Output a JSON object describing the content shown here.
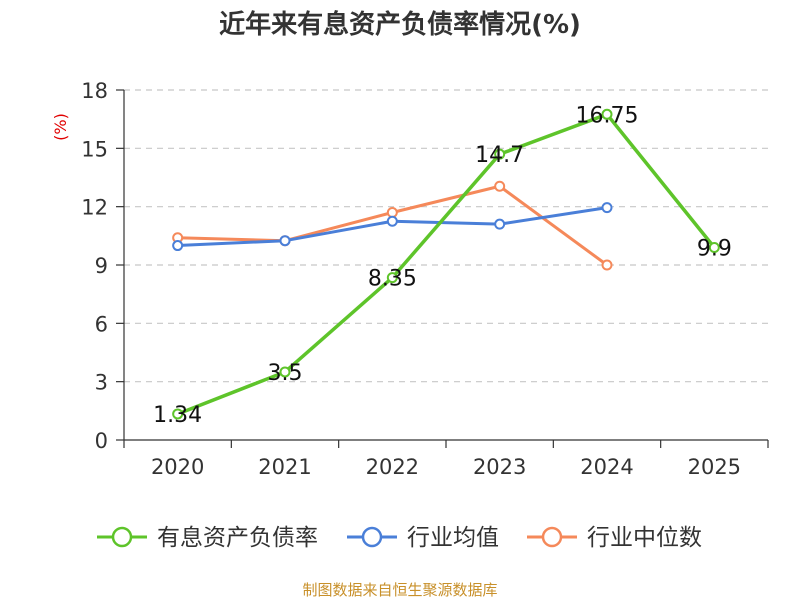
{
  "chart_data": {
    "type": "line",
    "title": "近年来有息资产负债率情况(%)",
    "ylabel": "(%)",
    "xlabel": "",
    "categories": [
      "2020",
      "2021",
      "2022",
      "2023",
      "2024",
      "2025"
    ],
    "ylim": [
      0,
      18
    ],
    "yticks": [
      0,
      3,
      6,
      9,
      12,
      15,
      18
    ],
    "grid": true,
    "legend_position": "bottom",
    "series": [
      {
        "name": "有息资产负债率",
        "color": "#5ec42a",
        "values": [
          1.34,
          3.5,
          8.35,
          14.7,
          16.75,
          9.9
        ],
        "data_labels": [
          "1.34",
          "3.5",
          "8.35",
          "14.7",
          "16.75",
          "9.9"
        ]
      },
      {
        "name": "行业均值",
        "color": "#4a7fd8",
        "values": [
          10.0,
          10.25,
          11.25,
          11.1,
          11.95,
          null
        ]
      },
      {
        "name": "行业中位数",
        "color": "#f5895a",
        "values": [
          10.4,
          10.25,
          11.7,
          13.05,
          9.0,
          null
        ]
      }
    ],
    "source": "制图数据来自恒生聚源数据库"
  }
}
